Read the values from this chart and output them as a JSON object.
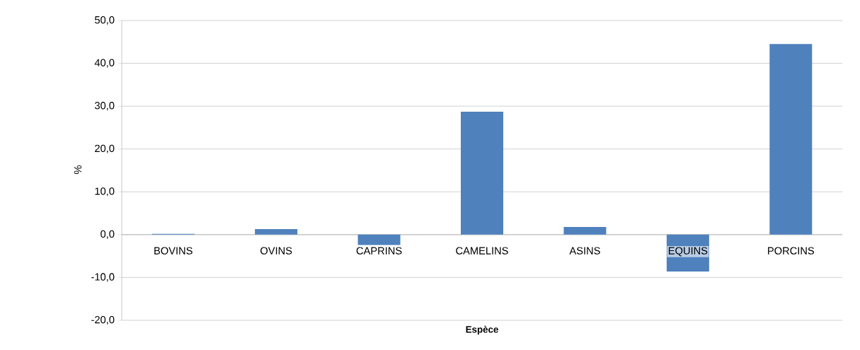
{
  "chart_data": {
    "type": "bar",
    "categories": [
      "BOVINS",
      "OVINS",
      "CAPRINS",
      "CAMELINS",
      "ASINS",
      "EQUINS",
      "PORCINS"
    ],
    "values": [
      0.2,
      1.3,
      -2.4,
      28.7,
      1.8,
      -8.6,
      44.5
    ],
    "color": "#4f81bd",
    "xlabel": "Espèce",
    "ylabel": "%",
    "ylim": [
      -20,
      50
    ],
    "yticks": [
      {
        "value": -20,
        "label": "-20,0"
      },
      {
        "value": -10,
        "label": "-10,0"
      },
      {
        "value": 0,
        "label": "0,0"
      },
      {
        "value": 10,
        "label": "10,0"
      },
      {
        "value": 20,
        "label": "20,0"
      },
      {
        "value": 30,
        "label": "30,0"
      },
      {
        "value": 40,
        "label": "40,0"
      },
      {
        "value": 50,
        "label": "50,0"
      }
    ],
    "grid": "y"
  }
}
